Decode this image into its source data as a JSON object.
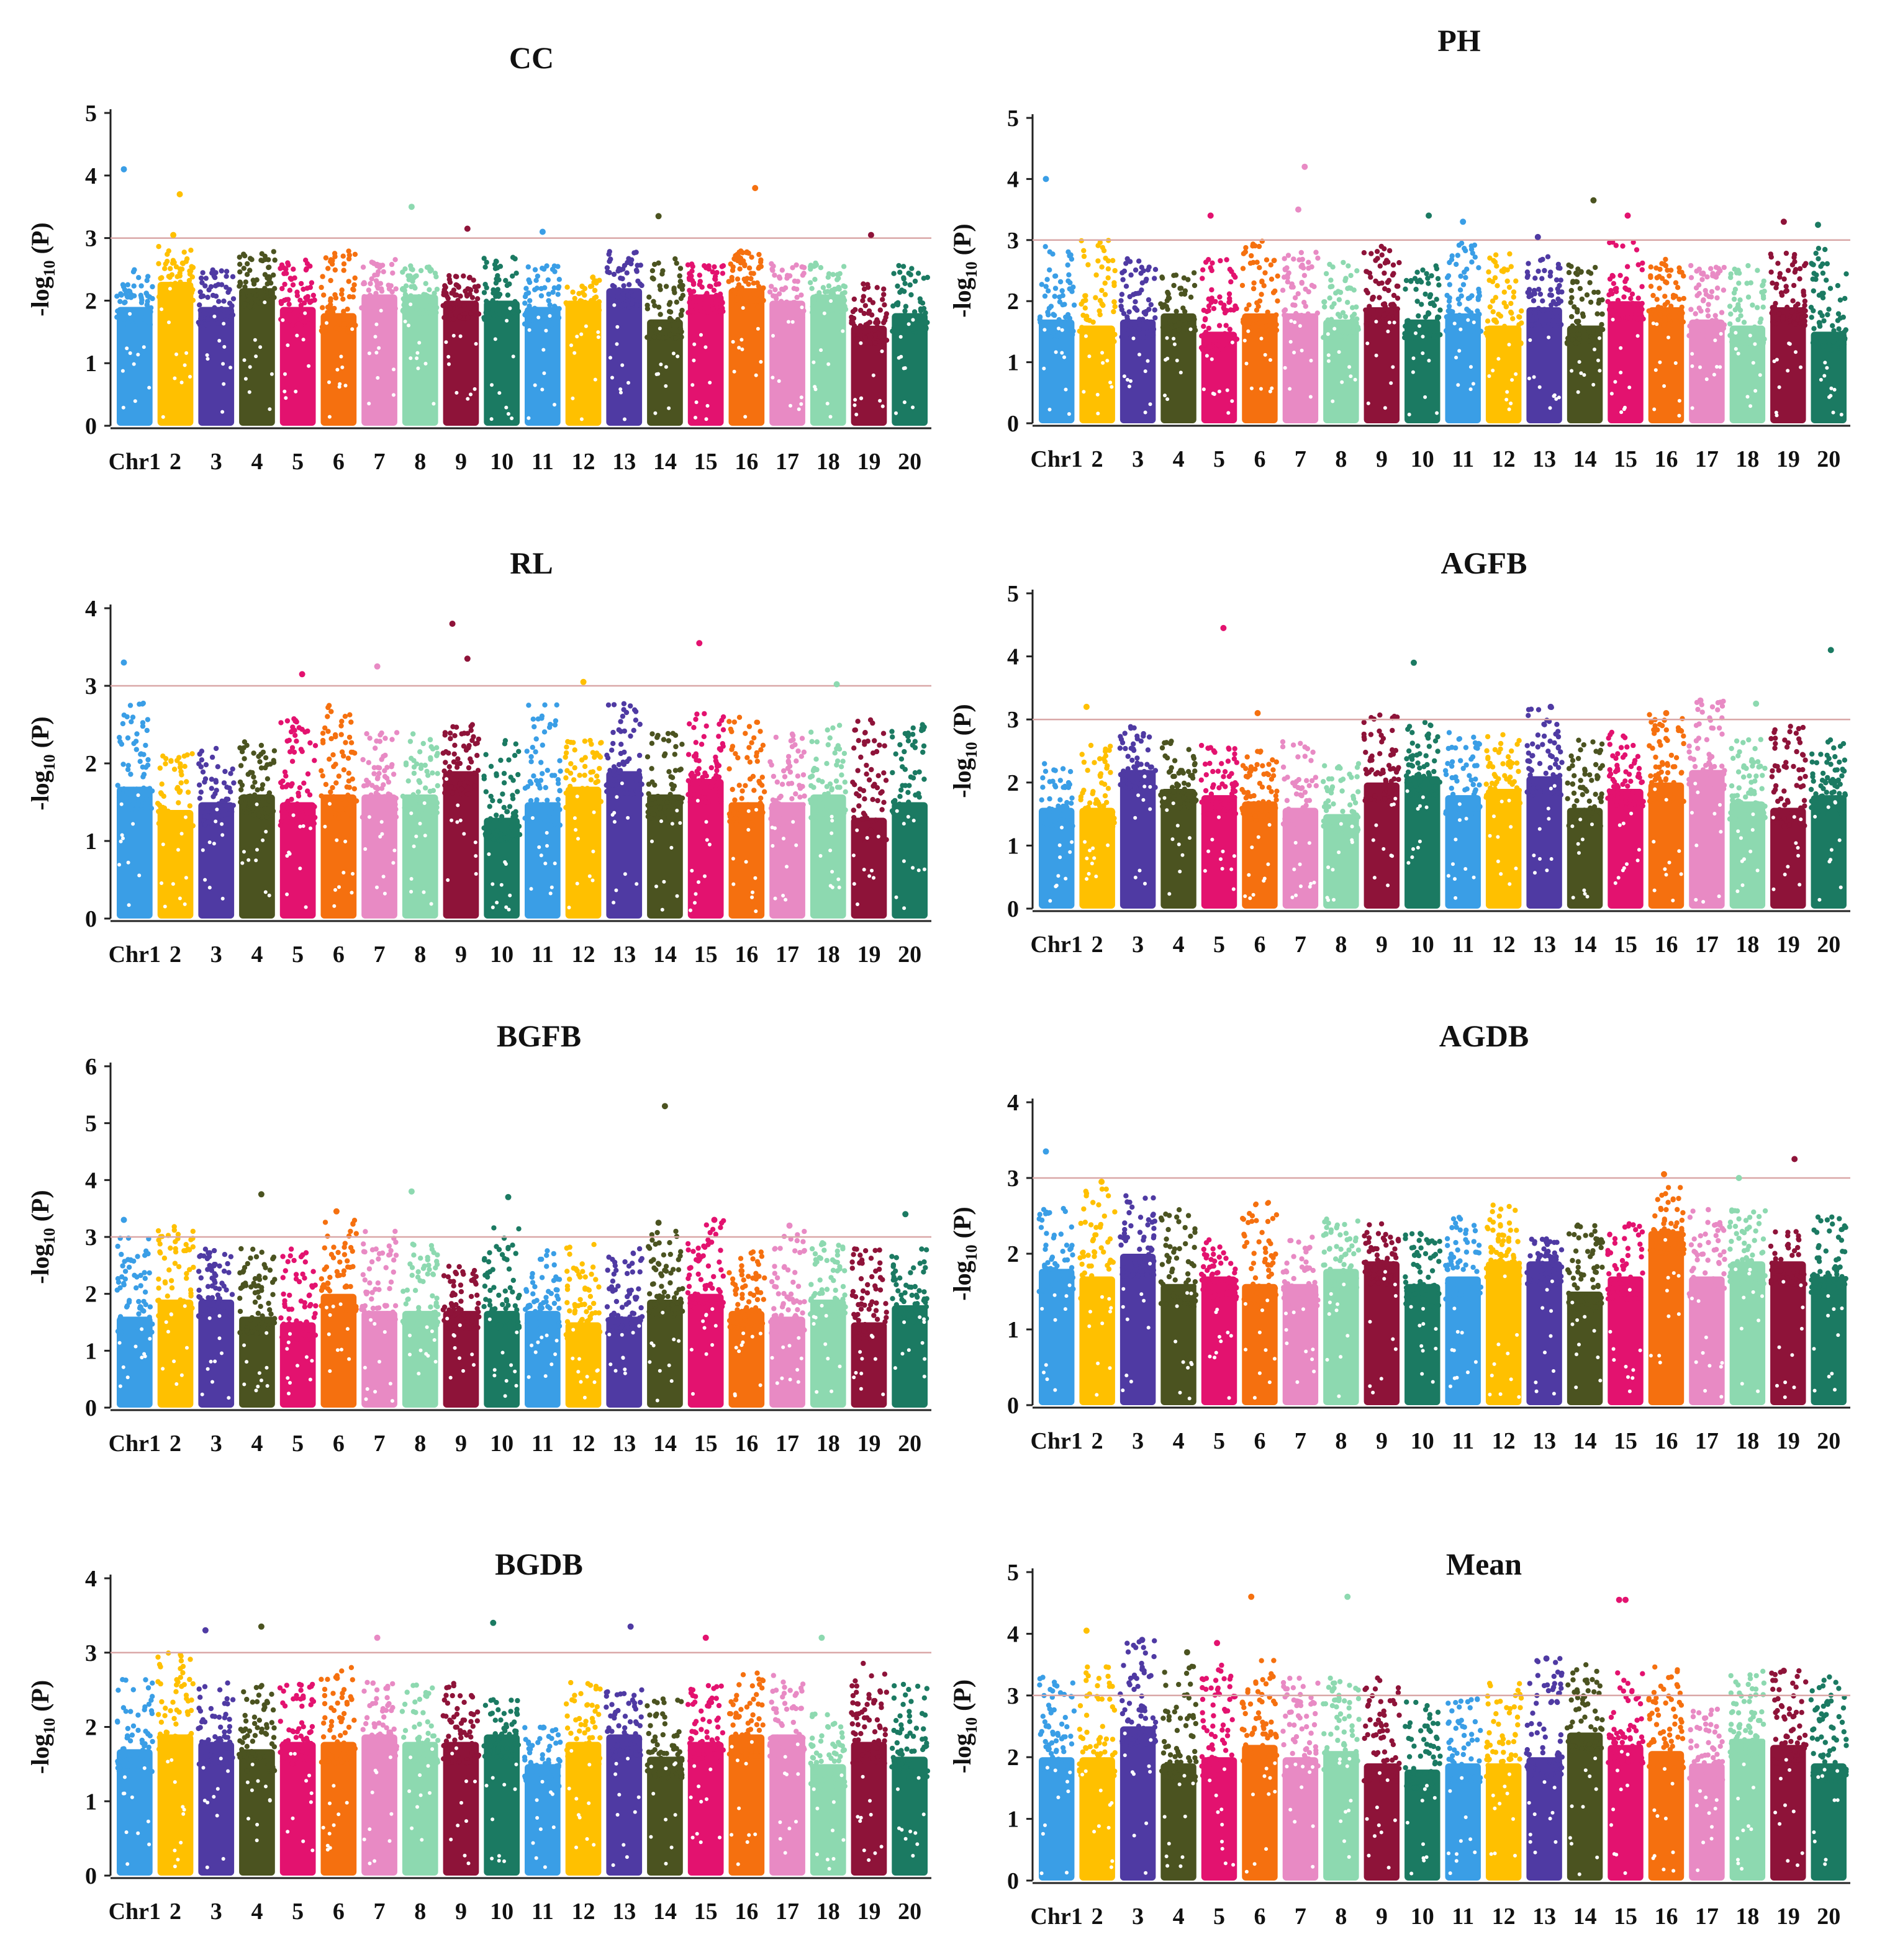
{
  "colors": [
    "#3a9ee6",
    "#ffc000",
    "#4f3aa3",
    "#4b5320",
    "#e3126f",
    "#f5700f",
    "#e88ac4",
    "#8dd9b0",
    "#8e1339",
    "#1b7a62",
    "#3a9ee6",
    "#ffc000",
    "#4f3aa3",
    "#4b5320",
    "#e3126f",
    "#f5700f",
    "#e88ac4",
    "#8dd9b0",
    "#8e1339",
    "#1b7a62"
  ],
  "chart_data": [
    {
      "type": "scatter",
      "title": "CC",
      "ylabel_main": "-log",
      "ylabel_sub": "10",
      "ylabel_tail": " (P)",
      "ylim": [
        0,
        5
      ],
      "yticks": [
        "0",
        "1",
        "2",
        "3",
        "4",
        "5"
      ],
      "threshold": 3,
      "categories": [
        "Chr1",
        "2",
        "3",
        "4",
        "5",
        "6",
        "7",
        "8",
        "9",
        "10",
        "11",
        "12",
        "13",
        "14",
        "15",
        "16",
        "17",
        "18",
        "19",
        "20"
      ],
      "body_heights": [
        1.9,
        2.3,
        1.9,
        2.2,
        1.9,
        1.8,
        2.1,
        2.1,
        2.0,
        2.0,
        1.9,
        2.0,
        2.2,
        1.7,
        2.1,
        2.2,
        2.0,
        2.1,
        1.6,
        1.8
      ],
      "spread_max": [
        2.5,
        2.9,
        2.5,
        2.8,
        2.7,
        2.8,
        2.7,
        2.6,
        2.4,
        2.7,
        2.6,
        2.4,
        2.8,
        2.7,
        2.6,
        2.8,
        2.6,
        2.6,
        2.3,
        2.6
      ],
      "peaks": [
        [
          0,
          4.1
        ],
        [
          1,
          3.7
        ],
        [
          1,
          3.05
        ],
        [
          7,
          3.5
        ],
        [
          8,
          3.15
        ],
        [
          10,
          3.1
        ],
        [
          13,
          3.35
        ],
        [
          15,
          3.8
        ],
        [
          18,
          3.05
        ]
      ]
    },
    {
      "type": "scatter",
      "title": "PH",
      "ylabel_main": "-log",
      "ylabel_sub": "10",
      "ylabel_tail": " (P)",
      "ylim": [
        0,
        5
      ],
      "yticks": [
        "0",
        "1",
        "2",
        "3",
        "4",
        "5"
      ],
      "threshold": 3,
      "categories": [
        "Chr1",
        "2",
        "3",
        "4",
        "5",
        "6",
        "7",
        "8",
        "9",
        "10",
        "11",
        "12",
        "13",
        "14",
        "15",
        "16",
        "17",
        "18",
        "19",
        "20"
      ],
      "body_heights": [
        1.7,
        1.6,
        1.7,
        1.8,
        1.5,
        1.8,
        1.8,
        1.7,
        1.9,
        1.7,
        1.8,
        1.6,
        1.9,
        1.6,
        2.0,
        1.9,
        1.7,
        1.6,
        1.9,
        1.5
      ],
      "spread_max": [
        2.9,
        3.0,
        2.7,
        2.5,
        2.7,
        3.0,
        2.8,
        2.7,
        2.9,
        2.6,
        3.0,
        2.8,
        2.8,
        2.6,
        3.0,
        2.7,
        2.6,
        2.6,
        2.9,
        2.9
      ],
      "peaks": [
        [
          0,
          4.0
        ],
        [
          6,
          4.2
        ],
        [
          6,
          3.5
        ],
        [
          4,
          3.4
        ],
        [
          9,
          3.4
        ],
        [
          10,
          3.3
        ],
        [
          12,
          3.05
        ],
        [
          13,
          3.65
        ],
        [
          14,
          3.4
        ],
        [
          18,
          3.3
        ],
        [
          19,
          3.25
        ]
      ]
    },
    {
      "type": "scatter",
      "title": "RL",
      "ylabel_main": "-log",
      "ylabel_sub": "10",
      "ylabel_tail": " (P)",
      "ylim": [
        0,
        4
      ],
      "yticks": [
        "0",
        "1",
        "2",
        "3",
        "4"
      ],
      "threshold": 3,
      "categories": [
        "Chr1",
        "2",
        "3",
        "4",
        "5",
        "6",
        "7",
        "8",
        "9",
        "10",
        "11",
        "12",
        "13",
        "14",
        "15",
        "16",
        "17",
        "18",
        "19",
        "20"
      ],
      "body_heights": [
        1.7,
        1.4,
        1.5,
        1.6,
        1.5,
        1.6,
        1.6,
        1.6,
        1.9,
        1.3,
        1.5,
        1.7,
        1.9,
        1.6,
        1.8,
        1.5,
        1.5,
        1.6,
        1.3,
        1.5
      ],
      "spread_max": [
        2.8,
        2.2,
        2.2,
        2.3,
        2.6,
        2.8,
        2.4,
        2.4,
        2.5,
        2.3,
        2.8,
        2.3,
        2.8,
        2.4,
        2.7,
        2.6,
        2.4,
        2.5,
        2.6,
        2.5
      ],
      "peaks": [
        [
          0,
          3.3
        ],
        [
          4,
          3.15
        ],
        [
          6,
          3.25
        ],
        [
          8,
          3.8
        ],
        [
          8,
          3.35
        ],
        [
          11,
          3.05
        ],
        [
          14,
          3.55
        ],
        [
          17,
          3.02
        ]
      ]
    },
    {
      "type": "scatter",
      "title": "AGFB",
      "ylabel_main": "-log",
      "ylabel_sub": "10",
      "ylabel_tail": " (P)",
      "ylim": [
        0,
        5
      ],
      "yticks": [
        "0",
        "1",
        "2",
        "3",
        "4",
        "5"
      ],
      "threshold": 3,
      "categories": [
        "Chr1",
        "2",
        "3",
        "4",
        "5",
        "6",
        "7",
        "8",
        "9",
        "10",
        "11",
        "12",
        "13",
        "14",
        "15",
        "16",
        "17",
        "18",
        "19",
        "20"
      ],
      "body_heights": [
        1.6,
        1.6,
        2.2,
        1.9,
        1.8,
        1.7,
        1.6,
        1.5,
        2.0,
        2.1,
        1.8,
        1.9,
        2.1,
        1.6,
        1.9,
        2.0,
        2.2,
        1.7,
        1.6,
        1.8
      ],
      "spread_max": [
        2.3,
        2.6,
        2.9,
        2.7,
        2.6,
        2.5,
        2.7,
        2.3,
        3.1,
        3.0,
        2.8,
        2.8,
        3.2,
        2.7,
        2.8,
        3.1,
        3.3,
        2.7,
        2.9,
        2.7
      ],
      "peaks": [
        [
          1,
          3.2
        ],
        [
          4,
          4.45
        ],
        [
          5,
          3.1
        ],
        [
          9,
          3.9
        ],
        [
          12,
          3.2
        ],
        [
          15,
          3.1
        ],
        [
          16,
          3.3
        ],
        [
          17,
          3.25
        ],
        [
          19,
          4.1
        ]
      ]
    },
    {
      "type": "scatter",
      "title": "BGFB",
      "ylabel_main": "-log",
      "ylabel_sub": "10",
      "ylabel_tail": " (P)",
      "ylim": [
        0,
        6
      ],
      "yticks": [
        "0",
        "1",
        "2",
        "3",
        "4",
        "5",
        "6"
      ],
      "threshold": 3,
      "categories": [
        "Chr1",
        "2",
        "3",
        "4",
        "5",
        "6",
        "7",
        "8",
        "9",
        "10",
        "11",
        "12",
        "13",
        "14",
        "15",
        "16",
        "17",
        "18",
        "19",
        "20"
      ],
      "body_heights": [
        1.6,
        1.9,
        1.9,
        1.6,
        1.5,
        2.0,
        1.7,
        1.7,
        1.7,
        1.7,
        1.7,
        1.5,
        1.6,
        1.9,
        2.0,
        1.7,
        1.6,
        1.9,
        1.5,
        1.8
      ],
      "spread_max": [
        3.0,
        3.2,
        2.8,
        2.8,
        2.8,
        3.3,
        3.1,
        2.9,
        2.6,
        3.2,
        2.8,
        2.9,
        2.8,
        3.1,
        3.3,
        2.8,
        3.1,
        2.9,
        2.8,
        2.8
      ],
      "peaks": [
        [
          0,
          3.3
        ],
        [
          3,
          3.75
        ],
        [
          5,
          3.45
        ],
        [
          7,
          3.8
        ],
        [
          9,
          3.7
        ],
        [
          13,
          5.3
        ],
        [
          13,
          3.25
        ],
        [
          14,
          3.3
        ],
        [
          16,
          3.2
        ],
        [
          19,
          3.4
        ]
      ]
    },
    {
      "type": "scatter",
      "title": "AGDB",
      "ylabel_main": "-log",
      "ylabel_sub": "10",
      "ylabel_tail": " (P)",
      "ylim": [
        0,
        4
      ],
      "yticks": [
        "0",
        "1",
        "2",
        "3",
        "4"
      ],
      "threshold": 3,
      "categories": [
        "Chr1",
        "2",
        "3",
        "4",
        "5",
        "6",
        "7",
        "8",
        "9",
        "10",
        "11",
        "12",
        "13",
        "14",
        "15",
        "16",
        "17",
        "18",
        "19",
        "20"
      ],
      "body_heights": [
        1.8,
        1.7,
        2.0,
        1.6,
        1.7,
        1.6,
        1.6,
        1.8,
        1.9,
        1.6,
        1.7,
        1.9,
        1.9,
        1.5,
        1.7,
        2.3,
        1.7,
        1.9,
        1.9,
        1.7
      ],
      "spread_max": [
        2.6,
        2.9,
        2.8,
        2.6,
        2.2,
        2.7,
        2.3,
        2.5,
        2.4,
        2.3,
        2.5,
        2.7,
        2.2,
        2.4,
        2.4,
        2.9,
        2.6,
        2.6,
        2.3,
        2.5
      ],
      "peaks": [
        [
          0,
          3.35
        ],
        [
          1,
          2.95
        ],
        [
          15,
          3.05
        ],
        [
          17,
          3.0
        ],
        [
          18,
          3.25
        ]
      ]
    },
    {
      "type": "scatter",
      "title": "BGDB",
      "ylabel_main": "-log",
      "ylabel_sub": "10",
      "ylabel_tail": " (P)",
      "ylim": [
        0,
        4
      ],
      "yticks": [
        "0",
        "1",
        "2",
        "3",
        "4"
      ],
      "threshold": 3,
      "categories": [
        "Chr1",
        "2",
        "3",
        "4",
        "5",
        "6",
        "7",
        "8",
        "9",
        "10",
        "11",
        "12",
        "13",
        "14",
        "15",
        "16",
        "17",
        "18",
        "19",
        "20"
      ],
      "body_heights": [
        1.7,
        1.9,
        1.8,
        1.7,
        1.8,
        1.8,
        1.9,
        1.8,
        1.8,
        1.9,
        1.5,
        1.8,
        1.9,
        1.6,
        1.8,
        1.9,
        1.9,
        1.5,
        1.8,
        1.6
      ],
      "spread_max": [
        2.7,
        3.0,
        2.6,
        2.6,
        2.6,
        2.8,
        2.6,
        2.6,
        2.6,
        2.4,
        2.0,
        2.7,
        2.5,
        2.4,
        2.6,
        2.8,
        2.7,
        2.2,
        2.9,
        2.6
      ],
      "peaks": [
        [
          2,
          3.3
        ],
        [
          3,
          3.35
        ],
        [
          6,
          3.2
        ],
        [
          9,
          3.4
        ],
        [
          12,
          3.35
        ],
        [
          14,
          3.2
        ],
        [
          17,
          3.2
        ]
      ]
    },
    {
      "type": "scatter",
      "title": "Mean",
      "ylabel_main": "-log",
      "ylabel_sub": "10",
      "ylabel_tail": " (P)",
      "ylim": [
        0,
        5
      ],
      "yticks": [
        "0",
        "1",
        "2",
        "3",
        "4",
        "5"
      ],
      "threshold": 3,
      "categories": [
        "Chr1",
        "2",
        "3",
        "4",
        "5",
        "6",
        "7",
        "8",
        "9",
        "10",
        "11",
        "12",
        "13",
        "14",
        "15",
        "16",
        "17",
        "18",
        "19",
        "20"
      ],
      "body_heights": [
        2.0,
        2.0,
        2.5,
        1.9,
        2.0,
        2.2,
        2.0,
        2.1,
        1.9,
        1.8,
        1.9,
        1.9,
        2.0,
        2.4,
        2.2,
        2.1,
        1.9,
        2.3,
        2.2,
        1.9
      ],
      "spread_max": [
        3.3,
        3.5,
        3.9,
        3.5,
        3.5,
        3.6,
        3.3,
        3.3,
        3.3,
        2.9,
        3.0,
        3.2,
        3.6,
        3.5,
        3.4,
        3.5,
        2.8,
        3.4,
        3.4,
        3.4
      ],
      "peaks": [
        [
          1,
          4.05
        ],
        [
          2,
          3.9
        ],
        [
          4,
          3.85
        ],
        [
          5,
          4.6
        ],
        [
          7,
          4.6
        ],
        [
          14,
          4.55
        ],
        [
          14,
          4.55
        ],
        [
          3,
          3.7
        ],
        [
          12,
          3.6
        ],
        [
          18,
          3.4
        ]
      ]
    }
  ]
}
